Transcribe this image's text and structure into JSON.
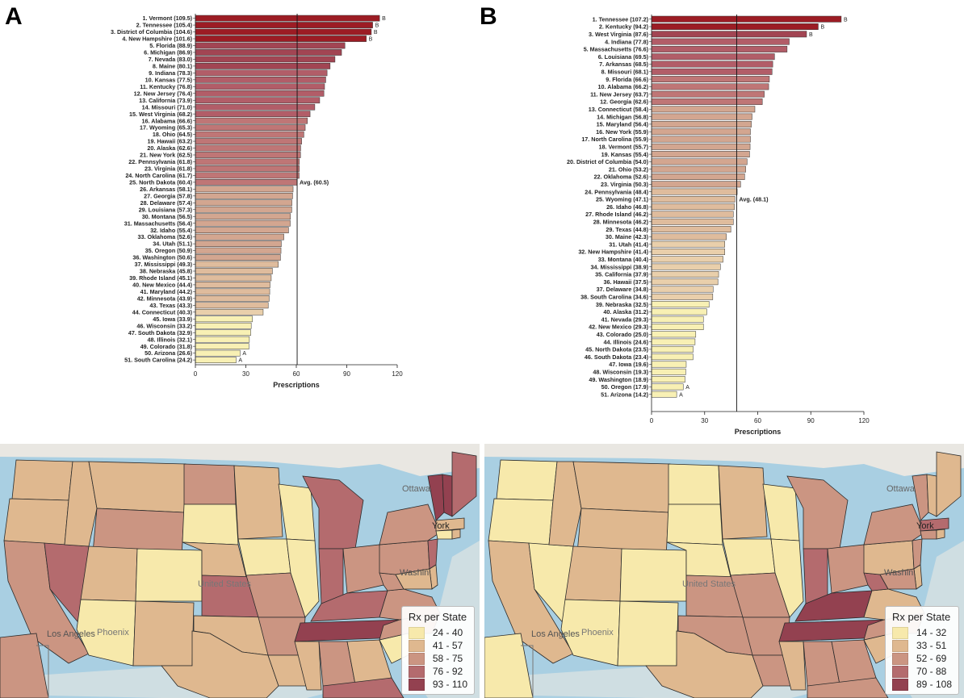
{
  "chart_data": [
    {
      "type": "bar",
      "panel_label": "A",
      "orientation": "horizontal",
      "xlabel": "Prescriptions",
      "xlim": [
        0,
        120
      ],
      "xticks": [
        0,
        30,
        60,
        90,
        120
      ],
      "average": 60.5,
      "average_label": "Avg. (60.5)",
      "categories": [
        "1. Vermont (109.5)",
        "2. Tennessee (105.4)",
        "3. District of Columbia (104.6)",
        "4. New Hampshire (101.6)",
        "5. Florida (88.9)",
        "6. Michigan (86.9)",
        "7. Nevada (83.0)",
        "8. Maine (80.1)",
        "9. Indiana (78.3)",
        "10. Kansas (77.5)",
        "11. Kentucky (76.8)",
        "12. New Jersey (76.4)",
        "13. California (73.9)",
        "14. Missouri (71.0)",
        "15. West Virginia (68.2)",
        "16. Alabama (66.6)",
        "17. Wyoming (65.3)",
        "18. Ohio (64.5)",
        "19. Hawaii (63.2)",
        "20. Alaska (62.6)",
        "21. New York (62.5)",
        "22. Pennsylvania (61.8)",
        "23. Virginia (61.8)",
        "24. North Carolina (61.7)",
        "25. North Dakota (60.4)",
        "26. Arkansas (58.1)",
        "27. Georgia (57.8)",
        "28. Delaware (57.4)",
        "29. Louisiana (57.3)",
        "30. Montana (56.5)",
        "31. Massachusetts (56.4)",
        "32. Idaho (55.4)",
        "33. Oklahoma (52.6)",
        "34. Utah (51.1)",
        "35. Oregon (50.9)",
        "36. Washington (50.6)",
        "37. Mississippi (49.3)",
        "38. Nebraska (45.8)",
        "39. Rhode Island (45.1)",
        "40. New Mexico (44.4)",
        "41. Maryland (44.2)",
        "42. Minnesota (43.9)",
        "43. Texas (43.3)",
        "44. Connecticut (40.3)",
        "45. Iowa (33.9)",
        "46. Wisconsin (33.2)",
        "47. South Dakota (32.9)",
        "48. Illinois (32.1)",
        "49. Colorado (31.8)",
        "50. Arizona (26.6)",
        "51. South Carolina (24.2)"
      ],
      "values": [
        109.5,
        105.4,
        104.6,
        101.6,
        88.9,
        86.9,
        83.0,
        80.1,
        78.3,
        77.5,
        76.8,
        76.4,
        73.9,
        71.0,
        68.2,
        66.6,
        65.3,
        64.5,
        63.2,
        62.6,
        62.5,
        61.8,
        61.8,
        61.7,
        60.4,
        58.1,
        57.8,
        57.4,
        57.3,
        56.5,
        56.4,
        55.4,
        52.6,
        51.1,
        50.9,
        50.6,
        49.3,
        45.8,
        45.1,
        44.4,
        44.2,
        43.9,
        43.3,
        40.3,
        33.9,
        33.2,
        32.9,
        32.1,
        31.8,
        26.6,
        24.2
      ],
      "annotations": [
        "B",
        "B",
        "B",
        "B",
        "",
        "",
        "",
        "",
        "",
        "",
        "",
        "",
        "",
        "",
        "",
        "",
        "",
        "",
        "",
        "",
        "",
        "",
        "",
        "",
        "",
        "",
        "",
        "",
        "",
        "",
        "",
        "",
        "",
        "",
        "",
        "",
        "",
        "",
        "",
        "",
        "",
        "",
        "",
        "",
        "",
        "",
        "",
        "",
        "",
        "A",
        "A"
      ]
    },
    {
      "type": "bar",
      "panel_label": "B",
      "orientation": "horizontal",
      "xlabel": "Prescriptions",
      "xlim": [
        0,
        120
      ],
      "xticks": [
        0,
        30,
        60,
        90,
        120
      ],
      "average": 48.1,
      "average_label": "Avg. (48.1)",
      "categories": [
        "1. Tennessee (107.2)",
        "2. Kentucky (94.2)",
        "3. West Virginia (87.6)",
        "4. Indiana (77.8)",
        "5. Massachusetts (76.6)",
        "6. Louisiana (69.5)",
        "7. Arkansas (68.5)",
        "8. Missouri (68.1)",
        "9. Florida (66.6)",
        "10. Alabama (66.2)",
        "11. New Jersey (63.7)",
        "12. Georgia (62.6)",
        "13. Connecticut (58.4)",
        "14. Michigan (56.8)",
        "15. Maryland (56.4)",
        "16. New York (55.9)",
        "17. North Carolina (55.9)",
        "18. Vermont (55.7)",
        "19. Kansas (55.4)",
        "20. District of Columbia (54.0)",
        "21. Ohio (53.2)",
        "22. Oklahoma (52.6)",
        "23. Virginia (50.3)",
        "24. Pennsylvania (48.4)",
        "25. Wyoming (47.1)",
        "26. Idaho (46.8)",
        "27. Rhode Island (46.2)",
        "28. Minnesota (46.2)",
        "29. Texas (44.8)",
        "30. Maine (42.3)",
        "31. Utah (41.4)",
        "32. New Hampshire (41.4)",
        "33. Montana (40.4)",
        "34. Mississippi (38.9)",
        "35. California (37.9)",
        "36. Hawaii (37.5)",
        "37. Delaware (34.8)",
        "38. South Carolina (34.6)",
        "39. Nebraska (32.5)",
        "40. Alaska (31.2)",
        "41. Nevada (29.3)",
        "42. New Mexico (29.3)",
        "43. Colorado (25.0)",
        "44. Illinois (24.6)",
        "45. North Dakota (23.5)",
        "46. South Dakota (23.4)",
        "47. Iowa (19.6)",
        "48. Wisconsin (19.3)",
        "49. Washington (18.9)",
        "50. Oregon (17.9)",
        "51. Arizona (14.2)"
      ],
      "values": [
        107.2,
        94.2,
        87.6,
        77.8,
        76.6,
        69.5,
        68.5,
        68.1,
        66.6,
        66.2,
        63.7,
        62.6,
        58.4,
        56.8,
        56.4,
        55.9,
        55.9,
        55.7,
        55.4,
        54.0,
        53.2,
        52.6,
        50.3,
        48.4,
        47.1,
        46.8,
        46.2,
        46.2,
        44.8,
        42.3,
        41.4,
        41.4,
        40.4,
        38.9,
        37.9,
        37.5,
        34.8,
        34.6,
        32.5,
        31.2,
        29.3,
        29.3,
        25.0,
        24.6,
        23.5,
        23.4,
        19.6,
        19.3,
        18.9,
        17.9,
        14.2
      ],
      "annotations": [
        "B",
        "B",
        "B",
        "",
        "",
        "",
        "",
        "",
        "",
        "",
        "",
        "",
        "",
        "",
        "",
        "",
        "",
        "",
        "",
        "",
        "",
        "",
        "",
        "",
        "",
        "",
        "",
        "",
        "",
        "",
        "",
        "",
        "",
        "",
        "",
        "",
        "",
        "",
        "",
        "",
        "",
        "",
        "",
        "",
        "",
        "",
        "",
        "",
        "",
        "A",
        "A"
      ]
    }
  ],
  "maps": [
    {
      "legend_title": "Rx per State",
      "legend_items": [
        {
          "label": "24 - 40",
          "color": "#f7e9ab"
        },
        {
          "label": "41 - 57",
          "color": "#dfb88f"
        },
        {
          "label": "58 - 75",
          "color": "#cb9582"
        },
        {
          "label": "76 - 92",
          "color": "#b46b6e"
        },
        {
          "label": "93 - 110",
          "color": "#934150"
        }
      ],
      "place_labels": {
        "ottawa": "Ottawa",
        "york": "York",
        "united_states": "United States",
        "phoenix": "Phoenix",
        "los_angeles": "Los Angeles",
        "washington": "Washin"
      }
    },
    {
      "legend_title": "Rx per State",
      "legend_items": [
        {
          "label": "14 - 32",
          "color": "#f7e9ab"
        },
        {
          "label": "33 - 51",
          "color": "#dfb88f"
        },
        {
          "label": "52 - 69",
          "color": "#cb9582"
        },
        {
          "label": "70 - 88",
          "color": "#b46b6e"
        },
        {
          "label": "89 - 108",
          "color": "#934150"
        }
      ],
      "place_labels": {
        "ottawa": "Ottawa",
        "york": "York",
        "united_states": "United States",
        "phoenix": "Phoenix",
        "los_angeles": "Los Angeles",
        "washington": "Washin"
      }
    }
  ],
  "colors": {
    "bin1": "#f7e9ab",
    "bin2": "#dfb88f",
    "bin3": "#cb9582",
    "bin4": "#b46b6e",
    "bin5": "#934150",
    "bin_top": "#9c1c24",
    "water": "#a9cfe2",
    "land_out": "#e9e7e2",
    "state_border": "#2a2a2a"
  }
}
